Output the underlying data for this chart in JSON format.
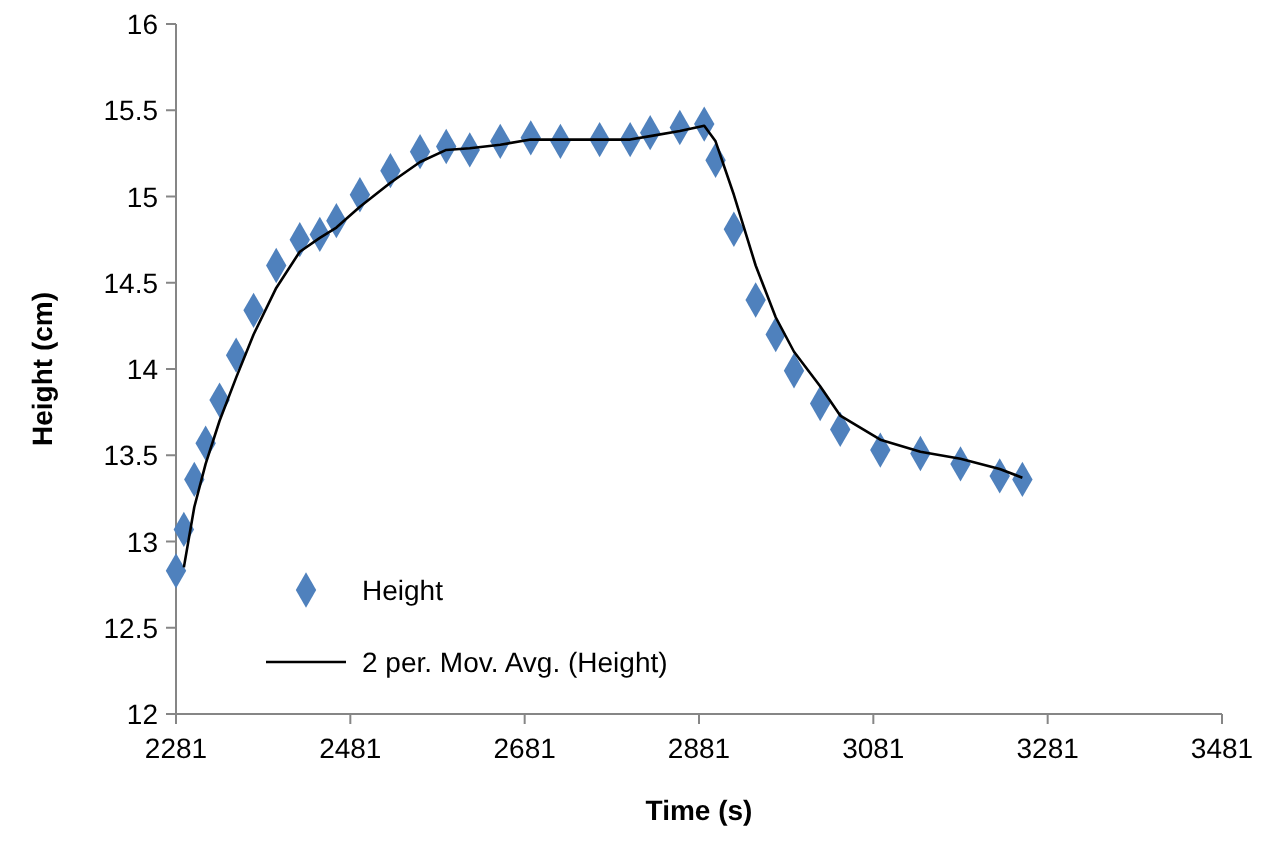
{
  "chart_data": {
    "type": "scatter",
    "xlabel": "Time (s)",
    "ylabel": "Height (cm)",
    "xlim": [
      2281,
      3481
    ],
    "xticks": [
      2281,
      2481,
      2681,
      2881,
      3081,
      3281,
      3481
    ],
    "ylim": [
      12,
      16
    ],
    "yticks": [
      12,
      12.5,
      13,
      13.5,
      14,
      14.5,
      15,
      15.5,
      16
    ],
    "grid": false,
    "legend": "bottom left",
    "series": [
      {
        "name": "Height",
        "marker": "diamond",
        "color": "#4f81bd",
        "x": [
          2281,
          2290,
          2302,
          2315,
          2331,
          2350,
          2370,
          2396,
          2423,
          2446,
          2465,
          2492,
          2527,
          2561,
          2591,
          2618,
          2653,
          2688,
          2722,
          2767,
          2802,
          2825,
          2859,
          2887,
          2900,
          2921,
          2946,
          2969,
          2990,
          3020,
          3043,
          3089,
          3135,
          3181,
          3226,
          3252
        ],
        "values": [
          12.83,
          13.07,
          13.36,
          13.57,
          13.82,
          14.08,
          14.34,
          14.6,
          14.75,
          14.78,
          14.86,
          15.01,
          15.15,
          15.26,
          15.29,
          15.27,
          15.32,
          15.34,
          15.32,
          15.33,
          15.33,
          15.37,
          15.4,
          15.42,
          15.21,
          14.81,
          14.4,
          14.2,
          13.99,
          13.8,
          13.65,
          13.53,
          13.51,
          13.45,
          13.38,
          13.36
        ]
      },
      {
        "name": "2 per. Mov. Avg. (Height)",
        "type": "line",
        "color": "#000000",
        "line_style": "solid",
        "marker": "none",
        "x": [
          2290,
          2302,
          2315,
          2331,
          2350,
          2370,
          2396,
          2423,
          2446,
          2465,
          2492,
          2527,
          2561,
          2591,
          2618,
          2653,
          2688,
          2722,
          2767,
          2802,
          2825,
          2859,
          2887,
          2900,
          2921,
          2946,
          2969,
          2990,
          3020,
          3043,
          3089,
          3135,
          3181,
          3226,
          3252
        ],
        "values": [
          12.85,
          13.2,
          13.45,
          13.7,
          13.95,
          14.2,
          14.47,
          14.68,
          14.76,
          14.82,
          14.94,
          15.08,
          15.2,
          15.27,
          15.28,
          15.3,
          15.33,
          15.33,
          15.33,
          15.33,
          15.35,
          15.38,
          15.41,
          15.32,
          15.01,
          14.6,
          14.3,
          14.1,
          13.9,
          13.73,
          13.59,
          13.52,
          13.48,
          13.42,
          13.37
        ]
      }
    ]
  }
}
